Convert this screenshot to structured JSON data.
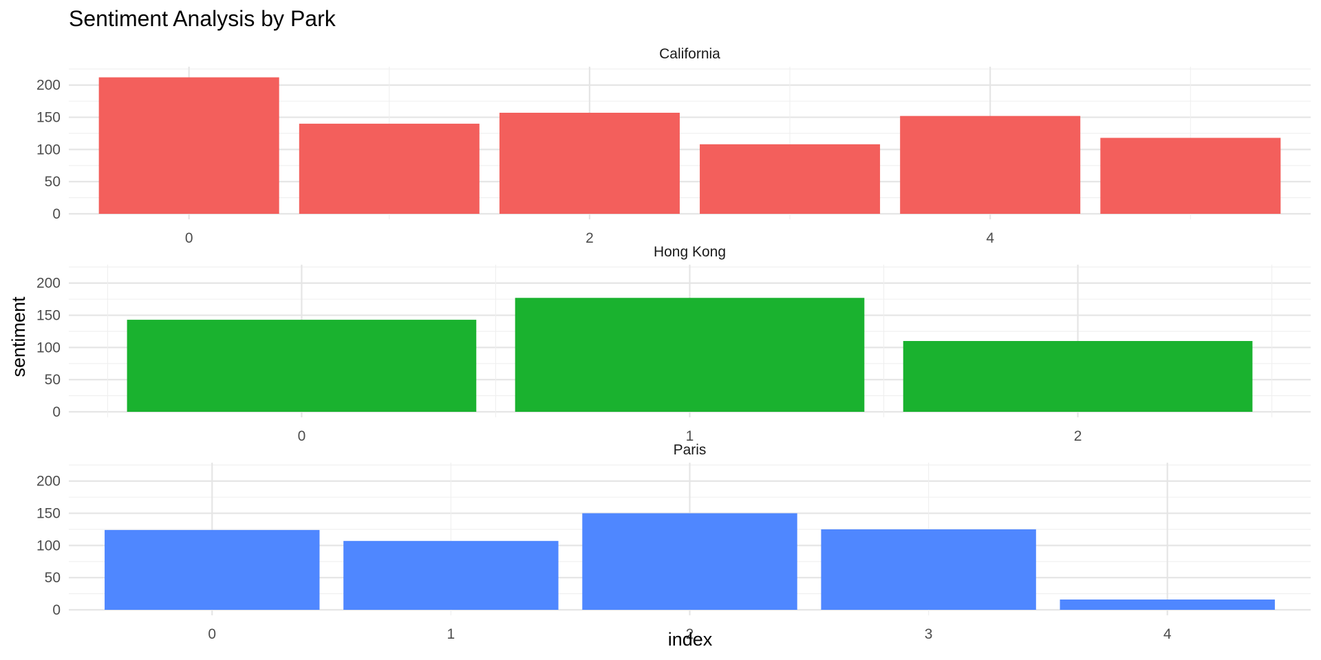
{
  "chart_data": {
    "type": "bar",
    "title": "Sentiment Analysis by Park",
    "xlabel": "index",
    "ylabel": "sentiment",
    "ylim": [
      0,
      220
    ],
    "y_ticks": [
      0,
      50,
      100,
      150,
      200
    ],
    "grid": true,
    "legend": "none",
    "panels": [
      {
        "name": "California",
        "color": "#F35F5C",
        "x": [
          0,
          1,
          2,
          3,
          4,
          5
        ],
        "x_tick_labels": [
          "0",
          "2",
          "4"
        ],
        "values": [
          212,
          140,
          157,
          108,
          152,
          118
        ]
      },
      {
        "name": "Hong Kong",
        "color": "#1AB22F",
        "x": [
          0,
          1,
          2
        ],
        "x_tick_labels": [
          "0",
          "1",
          "2"
        ],
        "values": [
          143,
          177,
          110
        ]
      },
      {
        "name": "Paris",
        "color": "#4F87FF",
        "x": [
          0,
          1,
          2,
          3,
          4
        ],
        "x_tick_labels": [
          "0",
          "1",
          "2",
          "3",
          "4"
        ],
        "values": [
          124,
          107,
          150,
          125,
          16
        ]
      }
    ]
  }
}
